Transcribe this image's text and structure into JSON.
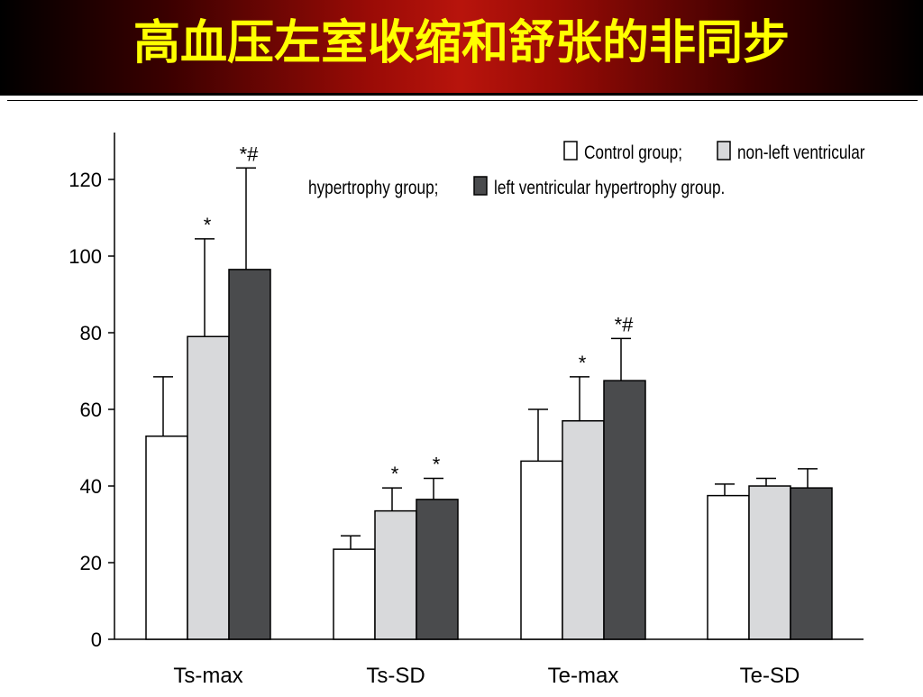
{
  "slide": {
    "title": "高血压左室收缩和舒张的非同步"
  },
  "chart_data": {
    "type": "bar",
    "categories": [
      "Ts-max",
      "Ts-SD",
      "Te-max",
      "Te-SD"
    ],
    "ylim": [
      0,
      130
    ],
    "yticks": [
      0,
      20,
      40,
      60,
      80,
      100,
      120
    ],
    "grid": false,
    "legend_position": "top-right",
    "legend_text": {
      "line1": "Control group;",
      "line1b": "non-left ventricular",
      "line2a": "hypertrophy group;",
      "line2b": "left ventricular hypertrophy group."
    },
    "series": [
      {
        "name": "Control group",
        "color": "#ffffff",
        "values": [
          53,
          23.5,
          46.5,
          37.5
        ],
        "error": [
          15.5,
          3.5,
          13.5,
          3
        ],
        "marks": [
          "",
          "",
          "",
          ""
        ]
      },
      {
        "name": "non-left ventricular hypertrophy group",
        "color": "#d8d9db",
        "values": [
          79,
          33.5,
          57,
          40
        ],
        "error": [
          25.5,
          6,
          11.5,
          2
        ],
        "marks": [
          "*",
          "*",
          "*",
          ""
        ]
      },
      {
        "name": "left ventricular hypertrophy group",
        "color": "#4a4b4d",
        "values": [
          96.5,
          36.5,
          67.5,
          39.5
        ],
        "error": [
          26.5,
          5.5,
          11,
          5
        ],
        "marks": [
          "*#",
          "*",
          "*#",
          ""
        ]
      }
    ]
  }
}
